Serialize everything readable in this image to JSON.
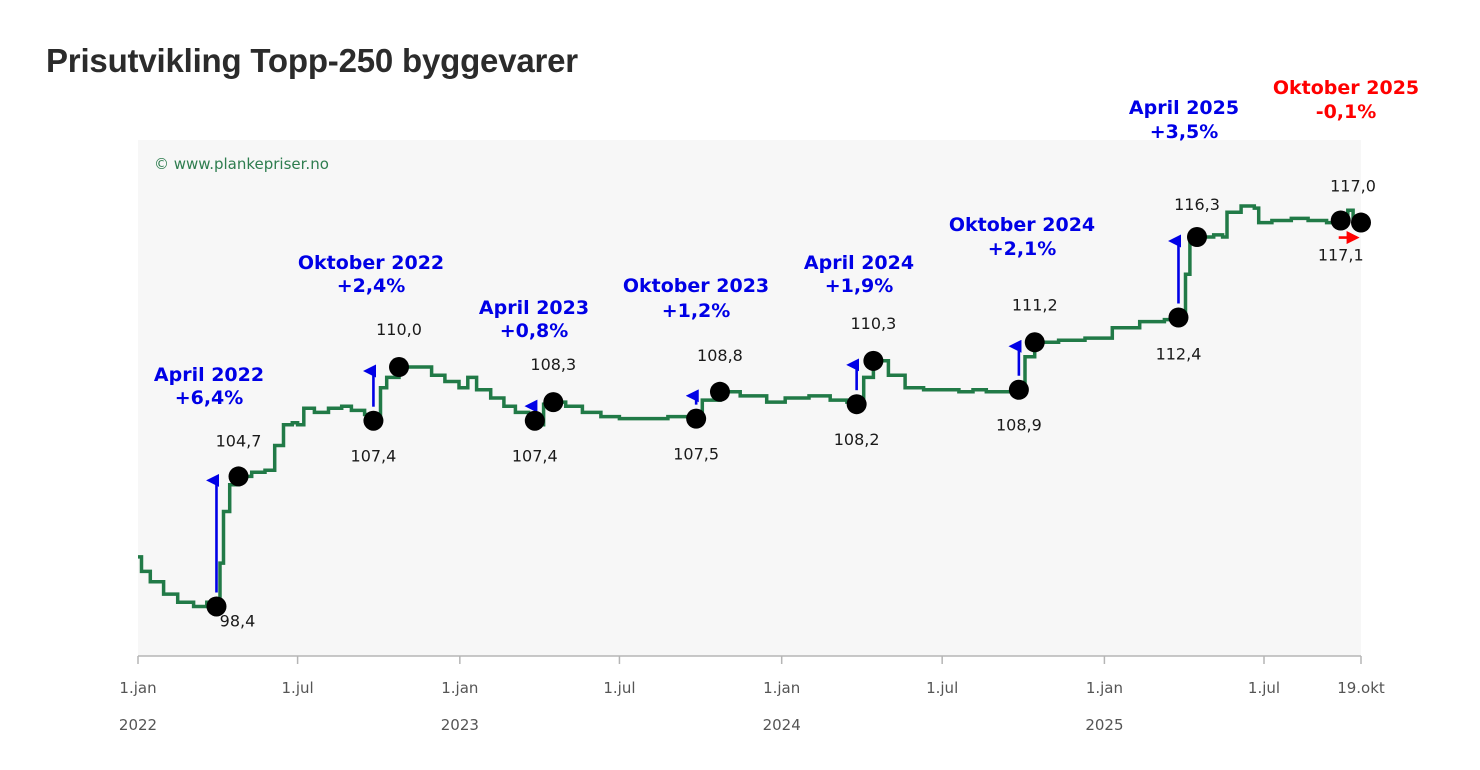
{
  "title": "Prisutvikling Topp-250 byggevarer",
  "watermark": "© www.plankepriser.no",
  "colors": {
    "line": "#217a47",
    "plot_bg": "#f7f7f7",
    "increase": "#0000e6",
    "decrease": "#ff0000",
    "marker": "#000000"
  },
  "chart_data": {
    "type": "line",
    "title": "Prisutvikling Topp-250 byggevarer",
    "x_tick_labels": [
      "1.jan",
      "1.jul",
      "1.jan",
      "1.jul",
      "1.jan",
      "1.jul",
      "1.jan",
      "1.jul",
      "19.okt"
    ],
    "year_labels": [
      "2022",
      "2023",
      "2024",
      "2025"
    ],
    "xlim": [
      "2022-01-01",
      "2025-10-19"
    ],
    "ylim": [
      96,
      121
    ],
    "series": [
      {
        "values": [
          [
            "2022-01-01",
            100.8
          ],
          [
            "2022-01-05",
            100.1
          ],
          [
            "2022-01-15",
            99.6
          ],
          [
            "2022-01-30",
            99.0
          ],
          [
            "2022-02-15",
            98.6
          ],
          [
            "2022-03-05",
            98.4
          ],
          [
            "2022-03-20",
            98.6
          ],
          [
            "2022-03-31",
            98.4
          ],
          [
            "2022-04-04",
            100.5
          ],
          [
            "2022-04-08",
            103.0
          ],
          [
            "2022-04-15",
            104.3
          ],
          [
            "2022-04-25",
            104.7
          ],
          [
            "2022-05-10",
            104.9
          ],
          [
            "2022-05-25",
            105.0
          ],
          [
            "2022-06-05",
            106.2
          ],
          [
            "2022-06-15",
            107.2
          ],
          [
            "2022-06-25",
            107.3
          ],
          [
            "2022-07-01",
            107.2
          ],
          [
            "2022-07-08",
            108.0
          ],
          [
            "2022-07-20",
            107.8
          ],
          [
            "2022-08-05",
            108.0
          ],
          [
            "2022-08-20",
            108.1
          ],
          [
            "2022-08-31",
            107.9
          ],
          [
            "2022-09-15",
            107.7
          ],
          [
            "2022-09-25",
            107.4
          ],
          [
            "2022-10-03",
            109.0
          ],
          [
            "2022-10-10",
            109.5
          ],
          [
            "2022-10-24",
            110.0
          ],
          [
            "2022-11-10",
            110.0
          ],
          [
            "2022-11-30",
            109.6
          ],
          [
            "2022-12-15",
            109.3
          ],
          [
            "2022-12-31",
            109.0
          ],
          [
            "2023-01-10",
            109.5
          ],
          [
            "2023-01-20",
            108.9
          ],
          [
            "2023-02-05",
            108.5
          ],
          [
            "2023-02-20",
            108.1
          ],
          [
            "2023-03-05",
            107.8
          ],
          [
            "2023-03-20",
            107.6
          ],
          [
            "2023-03-27",
            107.4
          ],
          [
            "2023-03-31",
            107.2
          ],
          [
            "2023-04-06",
            108.2
          ],
          [
            "2023-04-17",
            108.3
          ],
          [
            "2023-05-01",
            108.1
          ],
          [
            "2023-05-20",
            107.8
          ],
          [
            "2023-06-10",
            107.6
          ],
          [
            "2023-07-01",
            107.5
          ],
          [
            "2023-08-01",
            107.5
          ],
          [
            "2023-08-25",
            107.6
          ],
          [
            "2023-09-26",
            107.5
          ],
          [
            "2023-10-03",
            108.4
          ],
          [
            "2023-10-23",
            108.8
          ],
          [
            "2023-11-15",
            108.6
          ],
          [
            "2023-12-15",
            108.3
          ],
          [
            "2024-01-05",
            108.5
          ],
          [
            "2024-02-01",
            108.6
          ],
          [
            "2024-02-25",
            108.4
          ],
          [
            "2024-03-15",
            108.3
          ],
          [
            "2024-03-26",
            108.2
          ],
          [
            "2024-04-03",
            109.5
          ],
          [
            "2024-04-14",
            110.3
          ],
          [
            "2024-05-01",
            109.6
          ],
          [
            "2024-05-20",
            109.0
          ],
          [
            "2024-06-10",
            108.9
          ],
          [
            "2024-07-01",
            108.9
          ],
          [
            "2024-07-20",
            108.8
          ],
          [
            "2024-08-05",
            108.9
          ],
          [
            "2024-08-20",
            108.8
          ],
          [
            "2024-09-26",
            108.9
          ],
          [
            "2024-10-03",
            110.5
          ],
          [
            "2024-10-14",
            111.2
          ],
          [
            "2024-11-10",
            111.3
          ],
          [
            "2024-12-10",
            111.4
          ],
          [
            "2025-01-10",
            111.9
          ],
          [
            "2025-02-10",
            112.2
          ],
          [
            "2025-03-10",
            112.3
          ],
          [
            "2025-03-26",
            112.4
          ],
          [
            "2025-04-03",
            114.5
          ],
          [
            "2025-04-08",
            116.0
          ],
          [
            "2025-04-16",
            116.3
          ],
          [
            "2025-05-05",
            116.4
          ],
          [
            "2025-05-15",
            116.3
          ],
          [
            "2025-05-20",
            117.5
          ],
          [
            "2025-06-05",
            117.8
          ],
          [
            "2025-06-20",
            117.7
          ],
          [
            "2025-06-25",
            117.0
          ],
          [
            "2025-07-10",
            117.1
          ],
          [
            "2025-08-01",
            117.2
          ],
          [
            "2025-08-20",
            117.1
          ],
          [
            "2025-09-10",
            117.0
          ],
          [
            "2025-09-26",
            117.1
          ],
          [
            "2025-10-04",
            117.6
          ],
          [
            "2025-10-10",
            117.2
          ],
          [
            "2025-10-19",
            117.0
          ]
        ]
      }
    ],
    "markers": [
      {
        "x": "2022-03-31",
        "y": 98.4,
        "label": "98,4"
      },
      {
        "x": "2022-04-25",
        "y": 104.7,
        "label": "104,7"
      },
      {
        "x": "2022-09-25",
        "y": 107.4,
        "label": "107,4"
      },
      {
        "x": "2022-10-24",
        "y": 110.0,
        "label": "110,0"
      },
      {
        "x": "2023-03-27",
        "y": 107.4,
        "label": "107,4"
      },
      {
        "x": "2023-04-17",
        "y": 108.3,
        "label": "108,3"
      },
      {
        "x": "2023-09-26",
        "y": 107.5,
        "label": "107,5"
      },
      {
        "x": "2023-10-23",
        "y": 108.8,
        "label": "108,8"
      },
      {
        "x": "2024-03-26",
        "y": 108.2,
        "label": "108,2"
      },
      {
        "x": "2024-04-14",
        "y": 110.3,
        "label": "110,3"
      },
      {
        "x": "2024-09-26",
        "y": 108.9,
        "label": "108,9"
      },
      {
        "x": "2024-10-14",
        "y": 111.2,
        "label": "111,2"
      },
      {
        "x": "2025-03-26",
        "y": 112.4,
        "label": "112,4"
      },
      {
        "x": "2025-04-16",
        "y": 116.3,
        "label": "116,3"
      },
      {
        "x": "2025-09-26",
        "y": 117.1,
        "label": "117,1"
      },
      {
        "x": "2025-10-19",
        "y": 117.0,
        "label": "117,0"
      }
    ],
    "annotations": [
      {
        "period": "April 2022",
        "change": "+6,4%",
        "direction": "up",
        "x": "2022-03-31",
        "from": 98.4,
        "to": 104.7
      },
      {
        "period": "Oktober 2022",
        "change": "+2,4%",
        "direction": "up",
        "x": "2022-09-25",
        "from": 107.4,
        "to": 110.0
      },
      {
        "period": "April 2023",
        "change": "+0,8%",
        "direction": "up",
        "x": "2023-03-27",
        "from": 107.4,
        "to": 108.3
      },
      {
        "period": "Oktober 2023",
        "change": "+1,2%",
        "direction": "up",
        "x": "2023-09-26",
        "from": 107.5,
        "to": 108.8
      },
      {
        "period": "April 2024",
        "change": "+1,9%",
        "direction": "up",
        "x": "2024-03-26",
        "from": 108.2,
        "to": 110.3
      },
      {
        "period": "Oktober 2024",
        "change": "+2,1%",
        "direction": "up",
        "x": "2024-09-26",
        "from": 108.9,
        "to": 111.2
      },
      {
        "period": "April 2025",
        "change": "+3,5%",
        "direction": "up",
        "x": "2025-03-26",
        "from": 112.4,
        "to": 116.3
      },
      {
        "period": "Oktober 2025",
        "change": "-0,1%",
        "direction": "flat",
        "x": "2025-09-26",
        "from": 117.1,
        "to": 117.0
      }
    ]
  }
}
